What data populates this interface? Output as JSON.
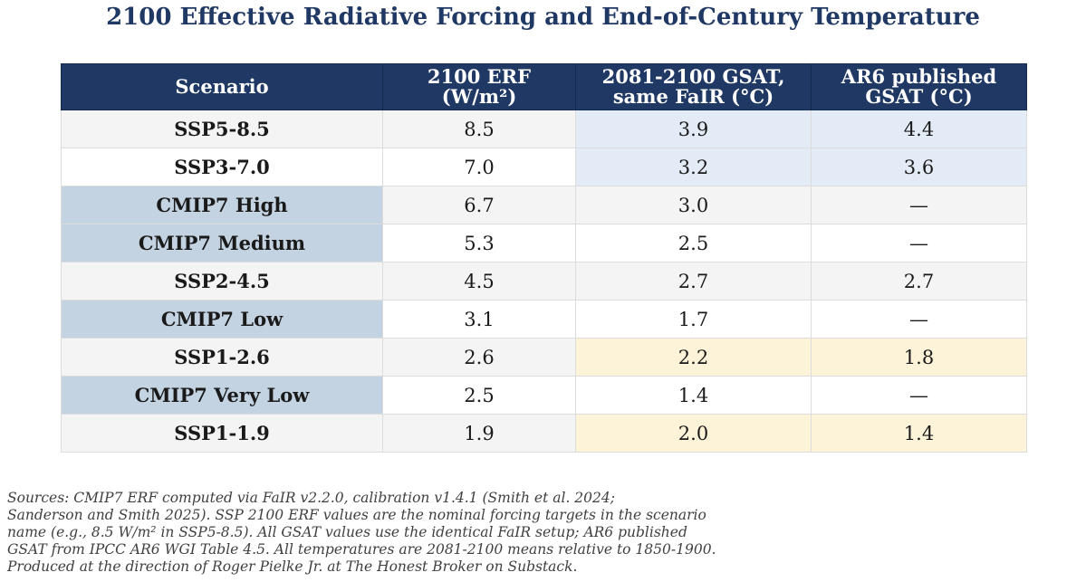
{
  "title": "2100 Effective Radiative Forcing and End-of-Century Temperature",
  "table": {
    "headers": [
      [
        "Scenario"
      ],
      [
        "2100 ERF",
        "(W/m²)"
      ],
      [
        "2081-2100 GSAT,",
        "same FaIR (°C)"
      ],
      [
        "AR6 published",
        "GSAT (°C)"
      ]
    ],
    "rows": [
      {
        "scenario": "SSP5-8.5",
        "erf": "8.5",
        "gsat": "3.9",
        "ar6": "4.4",
        "group": "SSP",
        "highlight": "blue"
      },
      {
        "scenario": "SSP3-7.0",
        "erf": "7.0",
        "gsat": "3.2",
        "ar6": "3.6",
        "group": "SSP",
        "highlight": "blue"
      },
      {
        "scenario": "CMIP7 High",
        "erf": "6.7",
        "gsat": "3.0",
        "ar6": "—",
        "group": "CMIP7",
        "highlight": "none"
      },
      {
        "scenario": "CMIP7 Medium",
        "erf": "5.3",
        "gsat": "2.5",
        "ar6": "—",
        "group": "CMIP7",
        "highlight": "none"
      },
      {
        "scenario": "SSP2-4.5",
        "erf": "4.5",
        "gsat": "2.7",
        "ar6": "2.7",
        "group": "SSP",
        "highlight": "none"
      },
      {
        "scenario": "CMIP7 Low",
        "erf": "3.1",
        "gsat": "1.7",
        "ar6": "—",
        "group": "CMIP7",
        "highlight": "none"
      },
      {
        "scenario": "SSP1-2.6",
        "erf": "2.6",
        "gsat": "2.2",
        "ar6": "1.8",
        "group": "SSP",
        "highlight": "yellow"
      },
      {
        "scenario": "CMIP7 Very Low",
        "erf": "2.5",
        "gsat": "1.4",
        "ar6": "—",
        "group": "CMIP7",
        "highlight": "none"
      },
      {
        "scenario": "SSP1-1.9",
        "erf": "1.9",
        "gsat": "2.0",
        "ar6": "1.4",
        "group": "SSP",
        "highlight": "yellow"
      }
    ]
  },
  "notes": [
    "Sources: CMIP7 ERF computed via FaIR v2.2.0, calibration v1.4.1 (Smith et al. 2024;",
    "Sanderson and Smith 2025). SSP 2100 ERF values are the nominal forcing targets in the scenario",
    "name (e.g., 8.5 W/m² in SSP5-8.5). All GSAT values use the identical FaIR setup; AR6 published",
    "GSAT from IPCC AR6 WGI Table 4.5. All temperatures are 2081-2100 means relative to 1850-1900.",
    "Produced at the direction of Roger Pielke Jr. at The Honest Broker on Substack."
  ],
  "colors": {
    "title": "#1f3864",
    "header_bg": "#1f3864",
    "row_alt": "#f4f4f4",
    "cmip7_bg": "#c4d3e2",
    "highlight_blue": "#e3ebf6",
    "highlight_yellow": "#fdf3d8"
  }
}
